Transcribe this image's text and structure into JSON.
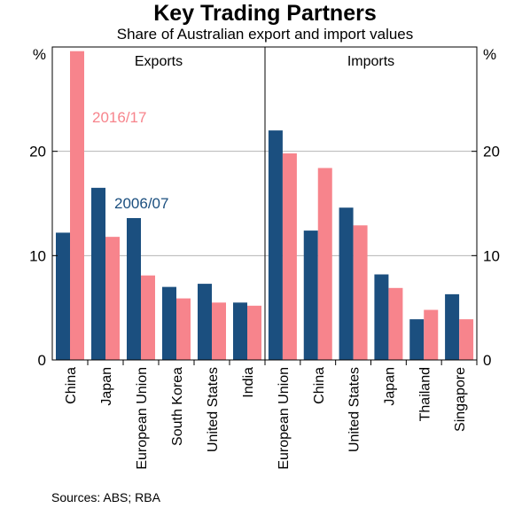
{
  "title": "Key Trading Partners",
  "subtitle": "Share of Australian export and import values",
  "source": "Sources:   ABS; RBA",
  "chart_data": {
    "type": "bar",
    "title": "Key Trading Partners",
    "subtitle": "Share of Australian export and import values",
    "yunit": "%",
    "ylim": [
      0,
      30
    ],
    "yticks": [
      0,
      10,
      20
    ],
    "grid": true,
    "colors": {
      "2006/07": "#1b4f7f",
      "2016/17": "#f7848c"
    },
    "panels": [
      {
        "name": "Exports",
        "categories": [
          "China",
          "Japan",
          "European Union",
          "South Korea",
          "United States",
          "India"
        ],
        "series": [
          {
            "name": "2006/07",
            "values": [
              12.2,
              16.5,
              13.6,
              7.0,
              7.3,
              5.5
            ]
          },
          {
            "name": "2016/17",
            "values": [
              29.6,
              11.8,
              8.1,
              5.9,
              5.5,
              5.2
            ]
          }
        ]
      },
      {
        "name": "Imports",
        "categories": [
          "European Union",
          "China",
          "United States",
          "Japan",
          "Thailand",
          "Singapore"
        ],
        "series": [
          {
            "name": "2006/07",
            "values": [
              22.0,
              12.4,
              14.6,
              8.2,
              3.9,
              6.3
            ]
          },
          {
            "name": "2016/17",
            "values": [
              19.8,
              18.4,
              12.9,
              6.9,
              4.8,
              3.9
            ]
          }
        ]
      }
    ],
    "annotations": [
      {
        "text": "2016/17",
        "panel": "Exports"
      },
      {
        "text": "2006/07",
        "panel": "Exports"
      }
    ]
  }
}
